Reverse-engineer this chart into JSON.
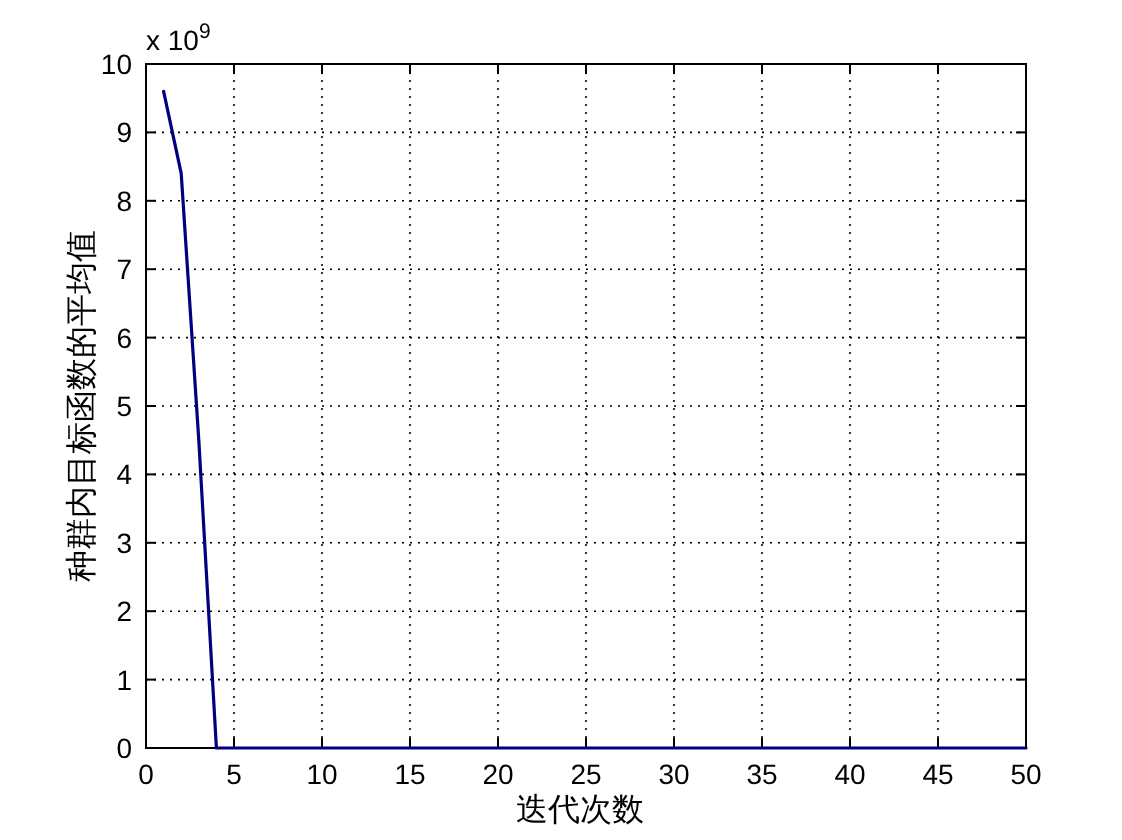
{
  "chart_data": {
    "type": "line",
    "xlabel": "迭代次数",
    "ylabel": "种群内目标函数的平均值",
    "annotations": [
      "x 10$^{9}$"
    ],
    "x": [
      1,
      2,
      3,
      4,
      5,
      6,
      7,
      8,
      9,
      10,
      11,
      12,
      13,
      14,
      15,
      16,
      17,
      18,
      19,
      20,
      21,
      22,
      23,
      24,
      25,
      26,
      27,
      28,
      29,
      30,
      31,
      32,
      33,
      34,
      35,
      36,
      37,
      38,
      39,
      40,
      41,
      42,
      43,
      44,
      45,
      46,
      47,
      48,
      49,
      50
    ],
    "values": [
      9.6,
      8.4,
      4.5,
      0,
      0,
      0,
      0,
      0,
      0,
      0,
      0,
      0,
      0,
      0,
      0,
      0,
      0,
      0,
      0,
      0,
      0,
      0,
      0,
      0,
      0,
      0,
      0,
      0,
      0,
      0,
      0,
      0,
      0,
      0,
      0,
      0,
      0,
      0,
      0,
      0,
      0,
      0,
      0,
      0,
      0,
      0,
      0,
      0,
      0,
      0
    ],
    "color": "#000080",
    "xlim": [
      0,
      50
    ],
    "ylim": [
      0,
      10
    ],
    "xticks": [
      0,
      5,
      10,
      15,
      20,
      25,
      30,
      35,
      40,
      45,
      50
    ],
    "yticks": [
      0,
      1,
      2,
      3,
      4,
      5,
      6,
      7,
      8,
      9,
      10
    ],
    "grid": true
  }
}
